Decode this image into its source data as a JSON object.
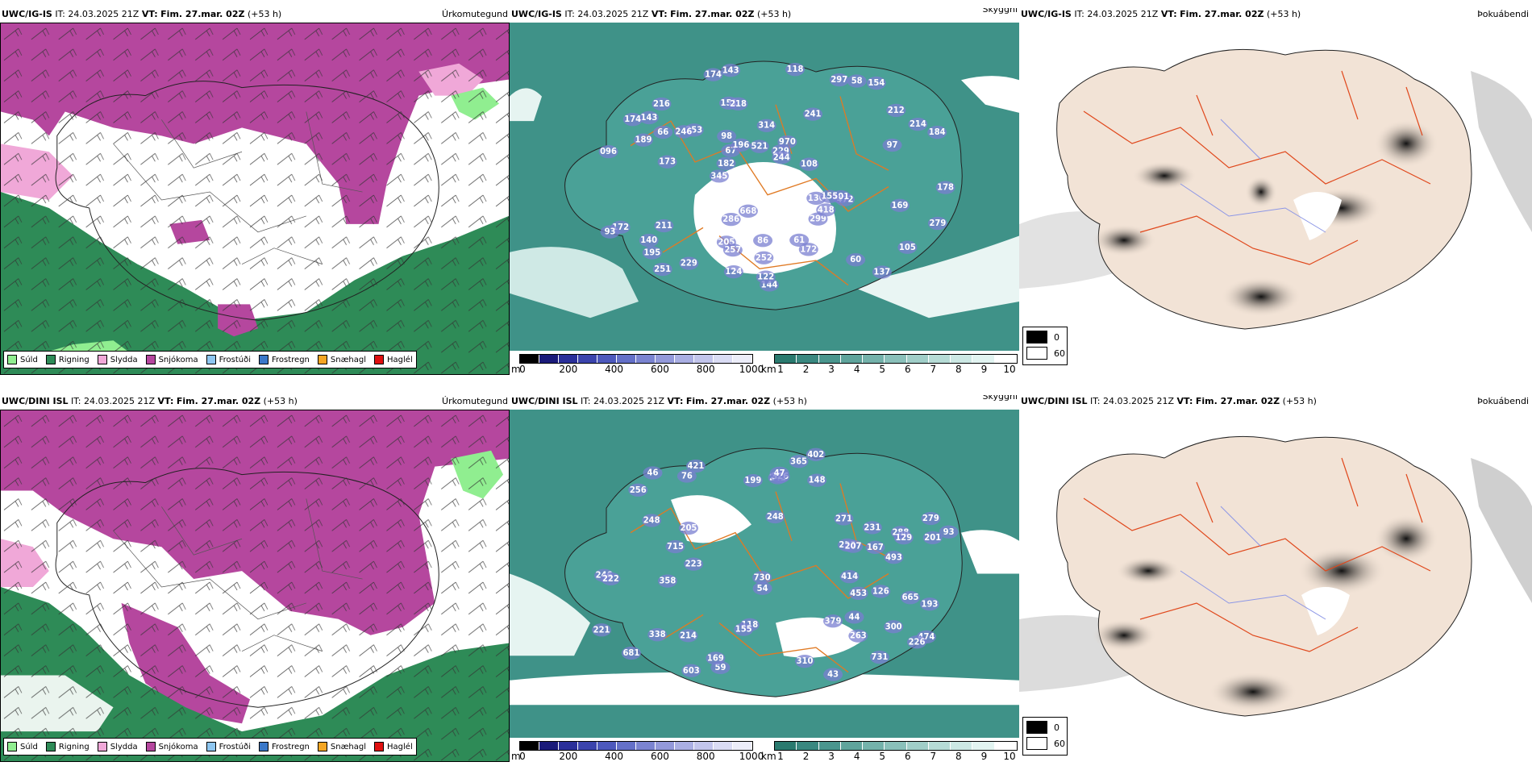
{
  "rows": [
    {
      "model": "UWC/IG-IS",
      "it_label": "IT:",
      "it": "24.03.2025 21Z",
      "vt_label": "VT:",
      "vt": "Fim. 27.mar. 02Z",
      "lead": "(+53 h)",
      "titles": [
        "Úrkomutegund",
        "Skyggni",
        "Þokuábendi"
      ],
      "cloud_labels": [
        "096",
        "345",
        "241",
        "151",
        "314",
        "172",
        "253",
        "195",
        "218",
        "970",
        "472",
        "143",
        "130",
        "214",
        "182",
        "205",
        "67",
        "216",
        "297",
        "211",
        "137",
        "105",
        "101",
        "144",
        "246",
        "189",
        "299",
        "251",
        "184",
        "229",
        "257",
        "244",
        "93",
        "212",
        "418",
        "172",
        "140",
        "86",
        "154",
        "173",
        "143",
        "58",
        "118",
        "174",
        "196",
        "279",
        "286",
        "229",
        "155",
        "66",
        "174",
        "178",
        "98",
        "252",
        "521",
        "108",
        "169",
        "124",
        "97",
        "668",
        "60",
        "122",
        "61"
      ],
      "cloud_positions_key": "row1"
    },
    {
      "model": "UWC/DINI ISL",
      "it_label": "IT:",
      "it": "24.03.2025 21Z",
      "vt_label": "VT:",
      "vt": "Fim. 27.mar. 02Z",
      "lead": "(+53 h)",
      "titles": [
        "Úrkomutegund",
        "Skyggni",
        "Þokuábendi"
      ],
      "cloud_labels": [
        "300",
        "279",
        "474",
        "248",
        "421",
        "288",
        "214",
        "248",
        "201",
        "493",
        "59",
        "221",
        "256",
        "226",
        "76",
        "118",
        "129",
        "246",
        "222",
        "310",
        "233",
        "169",
        "155",
        "365",
        "148",
        "271",
        "358",
        "263",
        "603",
        "730",
        "665",
        "731",
        "207",
        "199",
        "223",
        "126",
        "167",
        "242",
        "715",
        "193",
        "453",
        "681",
        "402",
        "205",
        "231",
        "338",
        "54",
        "326",
        "93",
        "379",
        "414",
        "46",
        "43",
        "47",
        "44"
      ],
      "cloud_positions_key": "row2"
    }
  ],
  "precip_legend": [
    {
      "label": "Súld",
      "color": "#90ee90"
    },
    {
      "label": "Rigning",
      "color": "#2e8b57"
    },
    {
      "label": "Slydda",
      "color": "#f0a8d8"
    },
    {
      "label": "Snjókoma",
      "color": "#b5479e"
    },
    {
      "label": "Frostúði",
      "color": "#8ec6f0"
    },
    {
      "label": "Frostregn",
      "color": "#3a78c9"
    },
    {
      "label": "Snæhagl",
      "color": "#f5a623"
    },
    {
      "label": "Haglél",
      "color": "#e01010"
    }
  ],
  "cloud_base_scale": {
    "unit": "m",
    "ticks": [
      "0",
      "200",
      "400",
      "600",
      "800",
      "1000"
    ],
    "colors": [
      "#000000",
      "#1a1a7a",
      "#2a2f9a",
      "#3b44ad",
      "#4d59bd",
      "#6470c8",
      "#7b84d1",
      "#9399da",
      "#aaafe3",
      "#c2c5ec",
      "#dadcf4",
      "#ecedf9"
    ]
  },
  "visibility_scale": {
    "unit": "km",
    "ticks": [
      "1",
      "2",
      "3",
      "4",
      "5",
      "6",
      "7",
      "8",
      "9",
      "10"
    ],
    "colors": [
      "#2a7a6f",
      "#3a8880",
      "#4a968e",
      "#5fa49c",
      "#74b2ab",
      "#8ac0ba",
      "#a0cec8",
      "#b6dcd6",
      "#cce8e4",
      "#e2f4f1",
      "#ffffff"
    ]
  },
  "fog_legend": [
    {
      "label": "0",
      "color": "#000000"
    },
    {
      "label": "60",
      "color": "#ffffff"
    }
  ]
}
